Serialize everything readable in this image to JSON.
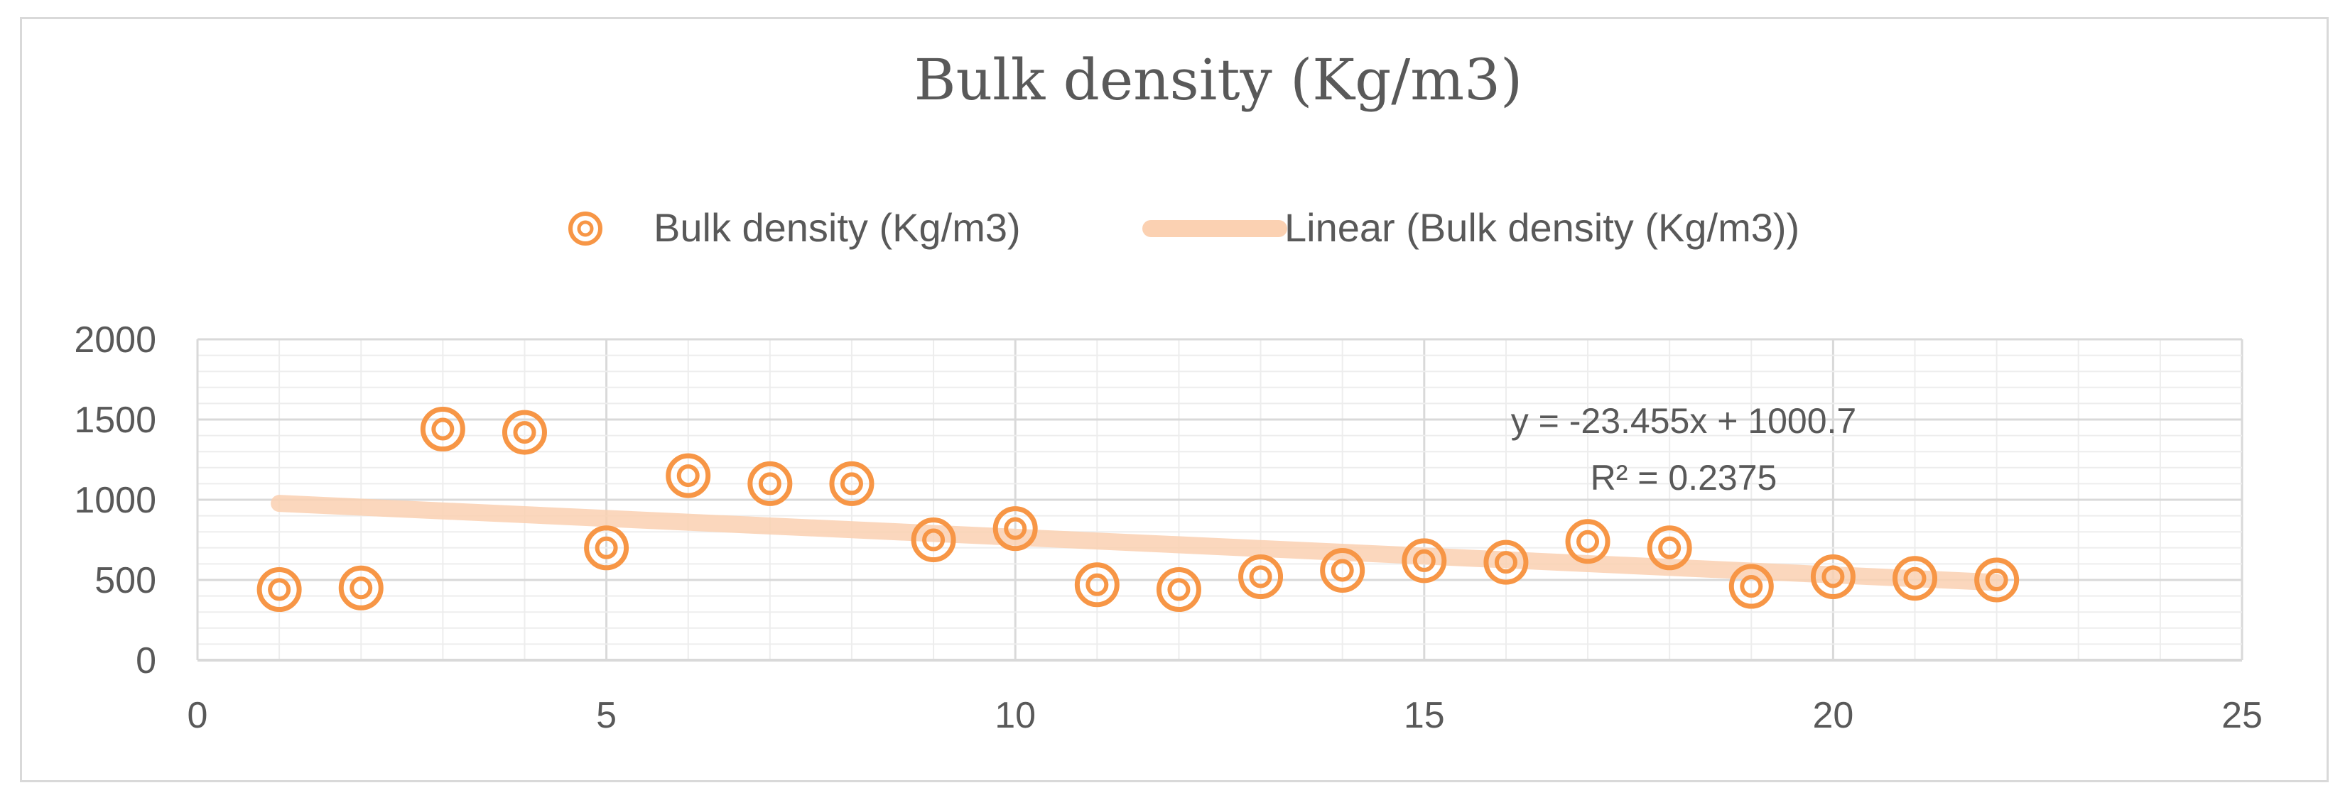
{
  "chart_data": {
    "type": "scatter",
    "title": "Bulk density (Kg/m3)",
    "xlabel": "",
    "ylabel": "",
    "xlim": [
      0,
      25
    ],
    "ylim": [
      0,
      2000
    ],
    "x_ticks": [
      "0",
      "5",
      "10",
      "15",
      "20",
      "25"
    ],
    "y_ticks": [
      "0",
      "500",
      "1000",
      "1500",
      "2000"
    ],
    "grid": "major and minor",
    "legend_position": "top",
    "series": [
      {
        "name": "Bulk density (Kg/m3)",
        "color": "#f79646",
        "marker": "ring",
        "x": [
          1,
          2,
          3,
          4,
          5,
          6,
          7,
          8,
          9,
          10,
          11,
          12,
          13,
          14,
          15,
          16,
          17,
          18,
          19,
          20,
          21,
          22
        ],
        "y": [
          440,
          450,
          1440,
          1420,
          700,
          1150,
          1100,
          1100,
          750,
          820,
          470,
          440,
          520,
          560,
          620,
          610,
          740,
          700,
          460,
          520,
          510,
          500
        ]
      }
    ],
    "trendline": {
      "name": "Linear (Bulk density (Kg/m3))",
      "color": "#fbd1b2",
      "slope": -23.455,
      "intercept": 1000.7,
      "x_range": [
        1,
        22
      ],
      "equation": "y = -23.455x + 1000.7",
      "r_squared": "R² = 0.2375"
    }
  }
}
